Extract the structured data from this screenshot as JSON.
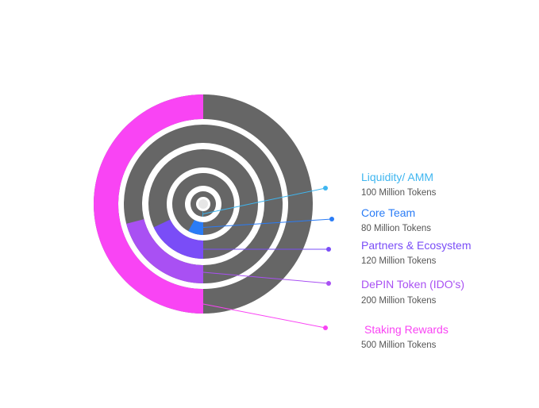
{
  "chart_data": {
    "type": "radial_bar",
    "title": "",
    "colors": {
      "track": "#666666",
      "center_dot": "#e6e6e6"
    },
    "series": [
      {
        "name": "Liquidity/ AMM",
        "label": "100 Million Tokens",
        "value": 100,
        "color": "#3fb6f0",
        "fraction": 0.01
      },
      {
        "name": "Core Team",
        "label": "80 Million Tokens",
        "value": 80,
        "color": "#2a7cf6",
        "fraction": 0.08
      },
      {
        "name": "Partners & Ecosystem",
        "label": "120 Million Tokens",
        "value": 120,
        "color": "#7a4df7",
        "fraction": 0.18
      },
      {
        "name": "DePIN Token (IDO's)",
        "label": "200 Million Tokens",
        "value": 200,
        "color": "#a950f3",
        "fraction": 0.21
      },
      {
        "name": "Staking Rewards",
        "label": "500 Million Tokens",
        "value": 500,
        "color": "#f944f4",
        "fraction": 0.5
      }
    ]
  }
}
